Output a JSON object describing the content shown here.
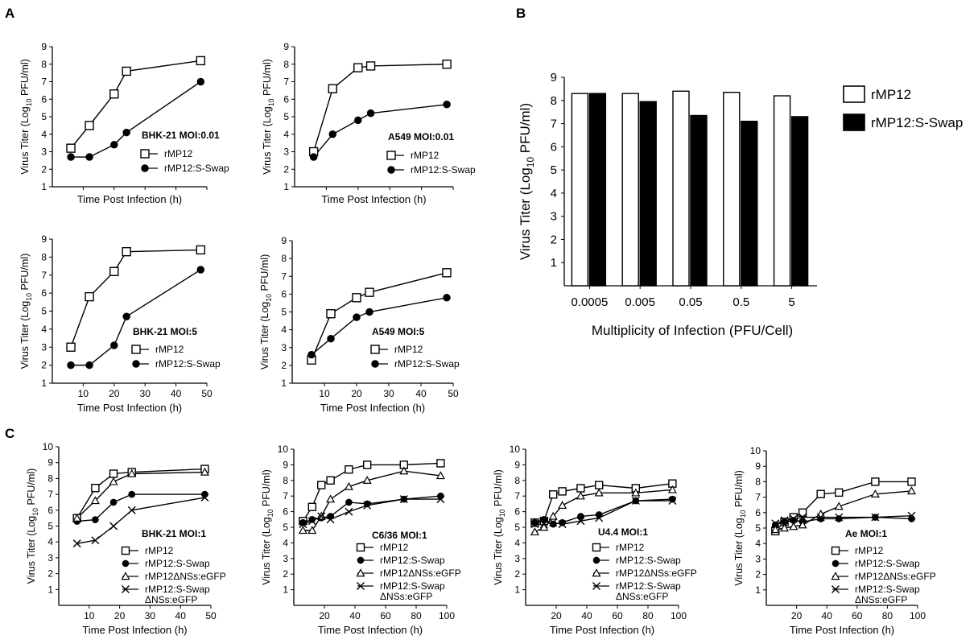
{
  "panel_labels": {
    "A": "A",
    "B": "B",
    "C": "C"
  },
  "colors": {
    "series_open": "#ffffff",
    "series_filled": "#000000",
    "stroke": "#000000"
  },
  "chart_data": [
    {
      "id": "a1",
      "type": "line",
      "panel": "A",
      "xlabel": "Time Post Infection (h)",
      "ylabel": "Virus Titer (Log10 PFU/ml)",
      "xlim": [
        0,
        50
      ],
      "ylim": [
        1,
        9
      ],
      "xticks": [],
      "yticks": [
        1,
        2,
        3,
        4,
        5,
        6,
        7,
        8,
        9
      ],
      "annotation": "BHK-21 MOI:0.01",
      "series": [
        {
          "name": "rMP12",
          "marker": "square-open",
          "x": [
            6,
            12,
            20,
            24,
            48
          ],
          "y": [
            3.2,
            4.5,
            6.3,
            7.6,
            8.2
          ]
        },
        {
          "name": "rMP12:S-Swap",
          "marker": "circle-filled",
          "x": [
            6,
            12,
            20,
            24,
            48
          ],
          "y": [
            2.7,
            2.7,
            3.4,
            4.1,
            7.0
          ]
        }
      ]
    },
    {
      "id": "a2",
      "type": "line",
      "panel": "A",
      "xlabel": "Time Post Infection (h)",
      "ylabel": "Virus Titer (Log10 PFU/ml)",
      "xlim": [
        0,
        50
      ],
      "ylim": [
        1,
        9
      ],
      "xticks": [],
      "yticks": [
        1,
        2,
        3,
        4,
        5,
        6,
        7,
        8,
        9
      ],
      "annotation": "A549 MOI:0.01",
      "series": [
        {
          "name": "rMP12",
          "marker": "square-open",
          "x": [
            6,
            12,
            20,
            24,
            48
          ],
          "y": [
            3.0,
            6.6,
            7.8,
            7.9,
            8.0
          ]
        },
        {
          "name": "rMP12:S-Swap",
          "marker": "circle-filled",
          "x": [
            6,
            12,
            20,
            24,
            48
          ],
          "y": [
            2.7,
            4.0,
            4.8,
            5.2,
            5.7
          ]
        }
      ]
    },
    {
      "id": "a3",
      "type": "line",
      "panel": "A",
      "xlabel": "Time Post Infection (h)",
      "ylabel": "Virus Titer (Log10 PFU/ml)",
      "xlim": [
        0,
        50
      ],
      "ylim": [
        1,
        9
      ],
      "xticks": [
        10,
        20,
        30,
        40,
        50
      ],
      "yticks": [
        1,
        2,
        3,
        4,
        5,
        6,
        7,
        8,
        9
      ],
      "annotation": "BHK-21 MOI:5",
      "series": [
        {
          "name": "rMP12",
          "marker": "square-open",
          "x": [
            6,
            12,
            20,
            24,
            48
          ],
          "y": [
            3.0,
            5.8,
            7.2,
            8.3,
            8.4
          ]
        },
        {
          "name": "rMP12:S-Swap",
          "marker": "circle-filled",
          "x": [
            6,
            12,
            20,
            24,
            48
          ],
          "y": [
            2.0,
            2.0,
            3.1,
            4.7,
            7.3
          ]
        }
      ]
    },
    {
      "id": "a4",
      "type": "line",
      "panel": "A",
      "xlabel": "Time Post Infection (h)",
      "ylabel": "Virus Titer (Log10 PFU/ml)",
      "xlim": [
        0,
        50
      ],
      "ylim": [
        1,
        9
      ],
      "xticks": [
        10,
        20,
        30,
        40,
        50
      ],
      "yticks": [
        1,
        2,
        3,
        4,
        5,
        6,
        7,
        8,
        9
      ],
      "annotation": "A549 MOI:5",
      "series": [
        {
          "name": "rMP12",
          "marker": "square-open",
          "x": [
            6,
            12,
            20,
            24,
            48
          ],
          "y": [
            2.3,
            4.9,
            5.8,
            6.1,
            7.2
          ]
        },
        {
          "name": "rMP12:S-Swap",
          "marker": "circle-filled",
          "x": [
            6,
            12,
            20,
            24,
            48
          ],
          "y": [
            2.6,
            3.5,
            4.7,
            5.0,
            5.8
          ]
        }
      ]
    },
    {
      "id": "b",
      "type": "bar",
      "panel": "B",
      "xlabel": "Multiplicity of Infection (PFU/Cell)",
      "ylabel": "Virus Titer (Log10 PFU/ml)",
      "ylim": [
        0,
        9
      ],
      "yticks": [
        1,
        2,
        3,
        4,
        5,
        6,
        7,
        8,
        9
      ],
      "categories": [
        "0.0005",
        "0.005",
        "0.05",
        "0.5",
        "5"
      ],
      "legend_position": "top-right",
      "series": [
        {
          "name": "rMP12",
          "fill": "open",
          "values": [
            8.3,
            8.3,
            8.4,
            8.35,
            8.2
          ]
        },
        {
          "name": "rMP12:S-Swap",
          "fill": "filled",
          "values": [
            8.3,
            7.95,
            7.35,
            7.1,
            7.3
          ]
        }
      ]
    },
    {
      "id": "c1",
      "type": "line",
      "panel": "C",
      "xlabel": "Time Post Infection (h)",
      "ylabel": "Virus Titer (Log10 PFU/ml)",
      "xlim": [
        0,
        50
      ],
      "ylim": [
        0,
        10
      ],
      "xticks": [
        10,
        20,
        30,
        40,
        50
      ],
      "yticks": [
        1,
        2,
        3,
        4,
        5,
        6,
        7,
        8,
        9,
        10
      ],
      "annotation": "BHK-21 MOI:1",
      "series": [
        {
          "name": "rMP12",
          "marker": "square-open",
          "x": [
            6,
            12,
            18,
            24,
            48
          ],
          "y": [
            5.5,
            7.4,
            8.3,
            8.4,
            8.6
          ]
        },
        {
          "name": "rMP12:S-Swap",
          "marker": "circle-filled",
          "x": [
            6,
            12,
            18,
            24,
            48
          ],
          "y": [
            5.3,
            5.4,
            6.5,
            7.0,
            7.0
          ]
        },
        {
          "name": "rMP12ΔNSs:eGFP",
          "marker": "triangle-open",
          "x": [
            6,
            12,
            18,
            24,
            48
          ],
          "y": [
            5.5,
            6.6,
            7.8,
            8.3,
            8.4
          ]
        },
        {
          "name": "rMP12:S-Swap ΔNSs:eGFP",
          "marker": "x",
          "x": [
            6,
            12,
            18,
            24,
            48
          ],
          "y": [
            3.9,
            4.1,
            5.0,
            6.0,
            6.8
          ]
        }
      ]
    },
    {
      "id": "c2",
      "type": "line",
      "panel": "C",
      "xlabel": "Time Post Infection (h)",
      "ylabel": "Virus Titer (Log10 PFU/ml)",
      "xlim": [
        0,
        100
      ],
      "ylim": [
        0,
        10
      ],
      "xticks": [
        20,
        40,
        60,
        80,
        100
      ],
      "yticks": [
        1,
        2,
        3,
        4,
        5,
        6,
        7,
        8,
        9,
        10
      ],
      "annotation": "C6/36 MOI:1",
      "series": [
        {
          "name": "rMP12",
          "marker": "square-open",
          "x": [
            6,
            12,
            18,
            24,
            36,
            48,
            72,
            96
          ],
          "y": [
            5.4,
            6.3,
            7.7,
            8.0,
            8.7,
            9.0,
            9.0,
            9.1
          ]
        },
        {
          "name": "rMP12:S-Swap",
          "marker": "circle-filled",
          "x": [
            6,
            12,
            18,
            24,
            36,
            48,
            72,
            96
          ],
          "y": [
            5.3,
            5.5,
            5.6,
            5.7,
            6.6,
            6.5,
            6.8,
            7.0
          ]
        },
        {
          "name": "rMP12ΔNSs:eGFP",
          "marker": "triangle-open",
          "x": [
            6,
            12,
            18,
            24,
            36,
            48,
            72,
            96
          ],
          "y": [
            4.8,
            4.8,
            5.7,
            6.8,
            7.6,
            8.0,
            8.6,
            8.3
          ]
        },
        {
          "name": "rMP12:S-Swap ΔNSs:eGFP",
          "marker": "x",
          "x": [
            6,
            12,
            18,
            24,
            36,
            48,
            72,
            96
          ],
          "y": [
            5.2,
            5.4,
            5.7,
            5.5,
            6.0,
            6.4,
            6.8,
            6.8
          ]
        }
      ]
    },
    {
      "id": "c3",
      "type": "line",
      "panel": "C",
      "xlabel": "Time Post Infection (h)",
      "ylabel": "Virus Titer (Log10 PFU/ml)",
      "xlim": [
        0,
        100
      ],
      "ylim": [
        0,
        10
      ],
      "xticks": [
        20,
        40,
        60,
        80,
        100
      ],
      "yticks": [
        1,
        2,
        3,
        4,
        5,
        6,
        7,
        8,
        9,
        10
      ],
      "annotation": "U4.4 MOI:1",
      "series": [
        {
          "name": "rMP12",
          "marker": "square-open",
          "x": [
            6,
            12,
            18,
            24,
            36,
            48,
            72,
            96
          ],
          "y": [
            5.3,
            5.4,
            7.1,
            7.3,
            7.5,
            7.7,
            7.5,
            7.8
          ]
        },
        {
          "name": "rMP12:S-Swap",
          "marker": "circle-filled",
          "x": [
            6,
            12,
            18,
            24,
            36,
            48,
            72,
            96
          ],
          "y": [
            5.3,
            5.5,
            5.2,
            5.3,
            5.7,
            5.8,
            6.7,
            6.8
          ]
        },
        {
          "name": "rMP12ΔNSs:eGFP",
          "marker": "triangle-open",
          "x": [
            6,
            12,
            18,
            24,
            36,
            48,
            72,
            96
          ],
          "y": [
            4.7,
            5.0,
            5.7,
            6.4,
            7.0,
            7.2,
            7.2,
            7.4
          ]
        },
        {
          "name": "rMP12:S-Swap ΔNSs:eGFP",
          "marker": "x",
          "x": [
            6,
            12,
            18,
            24,
            36,
            48,
            72,
            96
          ],
          "y": [
            5.2,
            5.2,
            5.3,
            5.2,
            5.4,
            5.6,
            6.7,
            6.7
          ]
        }
      ]
    },
    {
      "id": "c4",
      "type": "line",
      "panel": "C",
      "xlabel": "Time Post Infection (h)",
      "ylabel": "Virus Titer (Log10 PFU/ml)",
      "xlim": [
        0,
        100
      ],
      "ylim": [
        0,
        10
      ],
      "xticks": [
        20,
        40,
        60,
        80,
        100
      ],
      "yticks": [
        1,
        2,
        3,
        4,
        5,
        6,
        7,
        8,
        9,
        10
      ],
      "annotation": "Ae MOI:1",
      "series": [
        {
          "name": "rMP12",
          "marker": "square-open",
          "x": [
            6,
            12,
            18,
            24,
            36,
            48,
            72,
            96
          ],
          "y": [
            4.8,
            5.4,
            5.7,
            6.0,
            7.2,
            7.3,
            8.0,
            8.0
          ]
        },
        {
          "name": "rMP12:S-Swap",
          "marker": "circle-filled",
          "x": [
            6,
            12,
            18,
            24,
            36,
            48,
            72,
            96
          ],
          "y": [
            5.2,
            5.4,
            5.5,
            5.4,
            5.6,
            5.6,
            5.7,
            5.6
          ]
        },
        {
          "name": "rMP12ΔNSs:eGFP",
          "marker": "triangle-open",
          "x": [
            6,
            12,
            18,
            24,
            36,
            48,
            72,
            96
          ],
          "y": [
            4.9,
            5.0,
            5.1,
            5.2,
            5.9,
            6.4,
            7.2,
            7.4
          ]
        },
        {
          "name": "rMP12:S-Swap ΔNSs:eGFP",
          "marker": "x",
          "x": [
            6,
            12,
            18,
            24,
            36,
            48,
            72,
            96
          ],
          "y": [
            5.3,
            5.5,
            5.6,
            5.7,
            5.7,
            5.7,
            5.7,
            5.8
          ]
        }
      ]
    }
  ]
}
